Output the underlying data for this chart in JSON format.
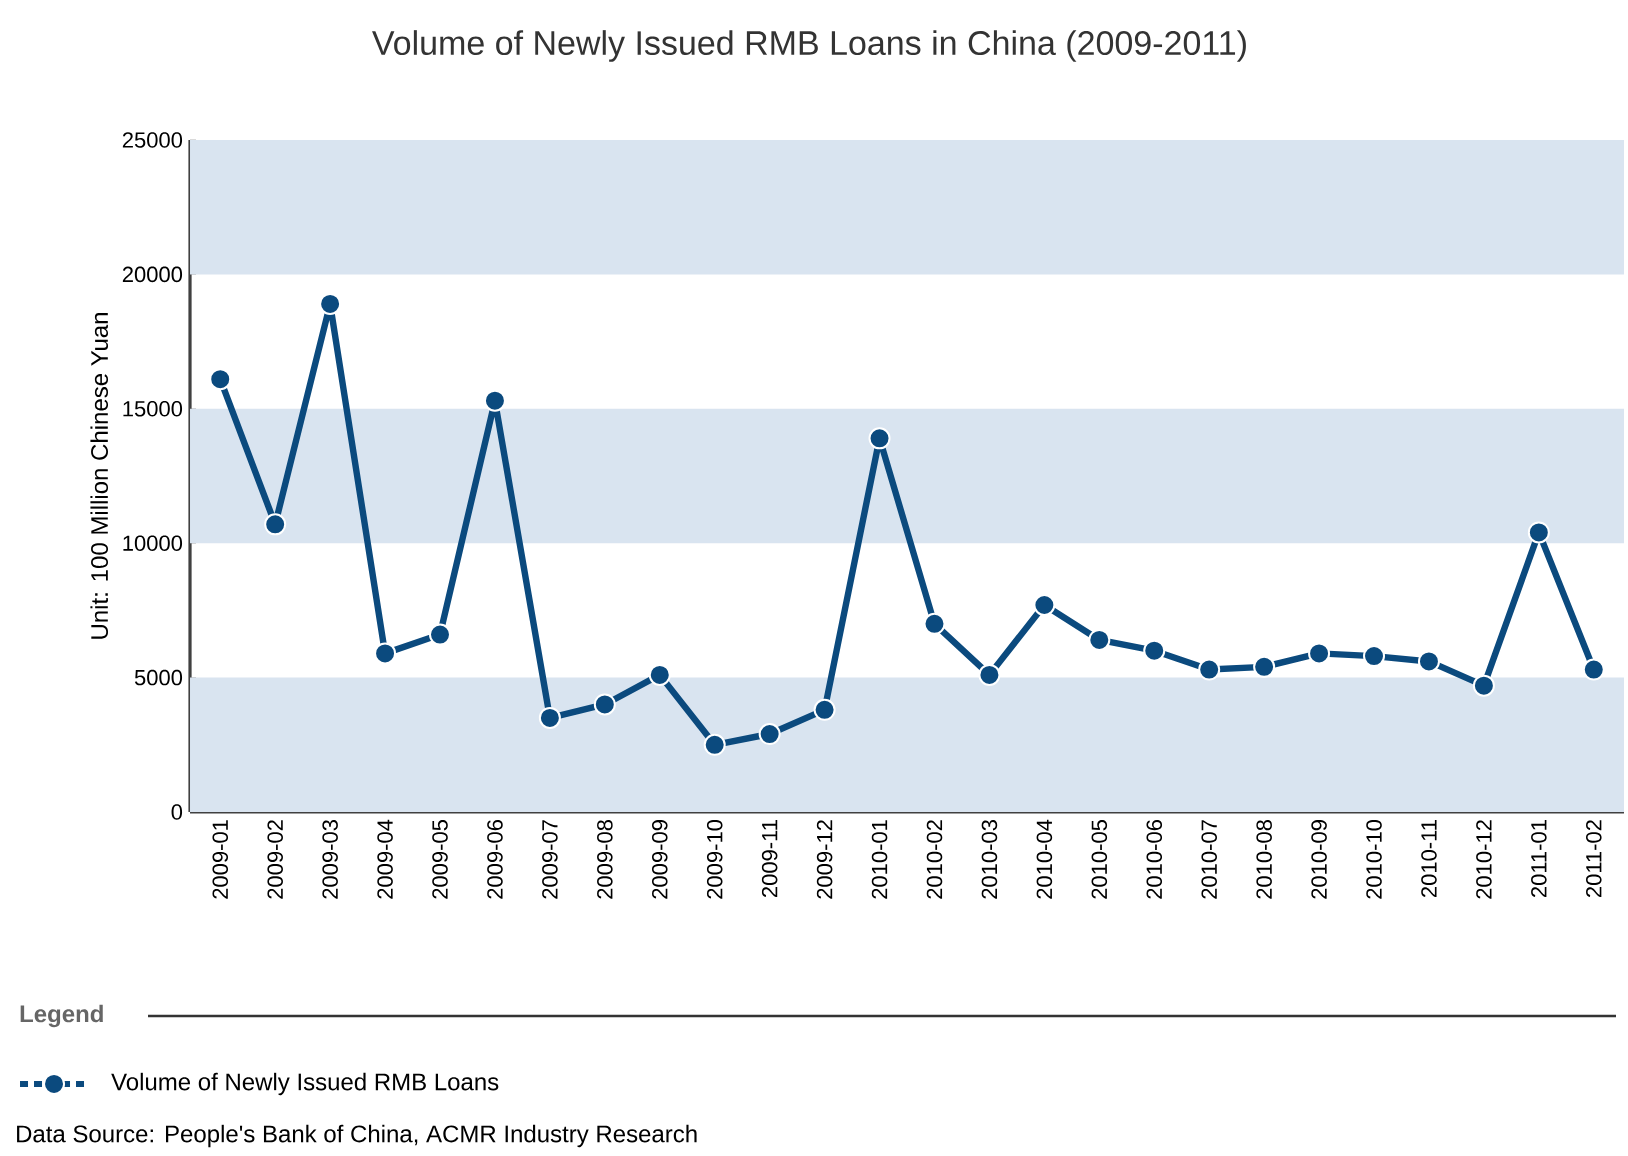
{
  "chart_data": {
    "type": "line",
    "title": "Volume of Newly Issued RMB Loans in China (2009-2011)",
    "ylabel": "Unit: 100 Million Chinese Yuan",
    "legend_title": "Legend",
    "categories": [
      "2009-01",
      "2009-02",
      "2009-03",
      "2009-04",
      "2009-05",
      "2009-06",
      "2009-07",
      "2009-08",
      "2009-09",
      "2009-10",
      "2009-11",
      "2009-12",
      "2010-01",
      "2010-02",
      "2010-03",
      "2010-04",
      "2010-05",
      "2010-06",
      "2010-07",
      "2010-08",
      "2010-09",
      "2010-10",
      "2010-11",
      "2010-12",
      "2011-01",
      "2011-02"
    ],
    "series": [
      {
        "name": "Volume of Newly Issued RMB Loans",
        "color": "#0b4a7e",
        "values": [
          16100,
          10700,
          18900,
          5900,
          6600,
          15300,
          3500,
          4000,
          5100,
          2500,
          2900,
          3800,
          13900,
          7000,
          5100,
          7700,
          6400,
          6000,
          5300,
          5400,
          5900,
          5800,
          5600,
          4700,
          10400,
          5300
        ]
      }
    ],
    "ylim": [
      0,
      25000
    ],
    "yticks": [
      0,
      5000,
      10000,
      15000,
      20000,
      25000
    ],
    "bands": [
      {
        "axis": "y",
        "from": 0,
        "to": 5000,
        "color": "#d9e4f0"
      },
      {
        "axis": "y",
        "from": 10000,
        "to": 15000,
        "color": "#d9e4f0"
      },
      {
        "axis": "y",
        "from": 20000,
        "to": 25000,
        "color": "#d9e4f0"
      }
    ],
    "marker": "circle",
    "line_style": "solid",
    "legend": "bottom",
    "annotations": [
      "Data Source: People's Bank of China, ACMR Industry Research"
    ]
  }
}
